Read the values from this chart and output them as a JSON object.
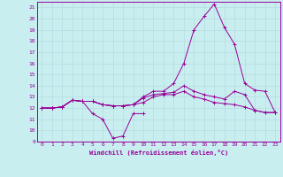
{
  "xlabel": "Windchill (Refroidissement éolien,°C)",
  "background_color": "#c8eef0",
  "grid_color": "#b8dce0",
  "line_color": "#990099",
  "xlim": [
    -0.5,
    23.5
  ],
  "ylim": [
    9,
    21.5
  ],
  "yticks": [
    9,
    10,
    11,
    12,
    13,
    14,
    15,
    16,
    17,
    18,
    19,
    20,
    21
  ],
  "xticks": [
    0,
    1,
    2,
    3,
    4,
    5,
    6,
    7,
    8,
    9,
    10,
    11,
    12,
    13,
    14,
    15,
    16,
    17,
    18,
    19,
    20,
    21,
    22,
    23
  ],
  "series": [
    {
      "x": [
        0,
        1,
        2,
        3,
        4,
        5,
        6,
        7,
        8,
        9,
        10
      ],
      "y": [
        12,
        12,
        12.1,
        12.7,
        12.6,
        11.5,
        11.0,
        9.3,
        9.5,
        11.5,
        11.5
      ]
    },
    {
      "x": [
        0,
        1,
        2,
        3,
        4,
        5,
        6,
        7,
        8,
        9,
        10,
        11,
        12,
        13,
        14,
        15,
        16,
        17,
        18,
        19,
        20,
        21,
        22,
        23
      ],
      "y": [
        12,
        12,
        12.1,
        12.7,
        12.6,
        12.6,
        12.3,
        12.2,
        12.2,
        12.3,
        12.5,
        13.0,
        13.2,
        13.2,
        13.5,
        13.0,
        12.8,
        12.5,
        12.4,
        12.3,
        12.1,
        11.8,
        11.6,
        11.6
      ]
    },
    {
      "x": [
        0,
        1,
        2,
        3,
        4,
        5,
        6,
        7,
        8,
        9,
        10,
        11,
        12,
        13,
        14,
        15,
        16,
        17,
        18,
        19,
        20,
        21,
        22,
        23
      ],
      "y": [
        12,
        12,
        12.1,
        12.7,
        12.6,
        12.6,
        12.3,
        12.2,
        12.2,
        12.3,
        12.9,
        13.2,
        13.3,
        13.4,
        14.0,
        13.5,
        13.2,
        13.0,
        12.8,
        13.5,
        13.2,
        11.8,
        11.6,
        11.6
      ]
    },
    {
      "x": [
        0,
        1,
        2,
        3,
        4,
        5,
        6,
        7,
        8,
        9,
        10,
        11,
        12,
        13,
        14,
        15,
        16,
        17,
        18,
        19,
        20,
        21,
        22,
        23
      ],
      "y": [
        12,
        12,
        12.1,
        12.7,
        12.6,
        12.6,
        12.3,
        12.2,
        12.2,
        12.3,
        13.0,
        13.5,
        13.5,
        14.2,
        16.0,
        19.0,
        20.2,
        21.3,
        19.2,
        17.7,
        14.2,
        13.6,
        13.5,
        11.6
      ]
    }
  ]
}
